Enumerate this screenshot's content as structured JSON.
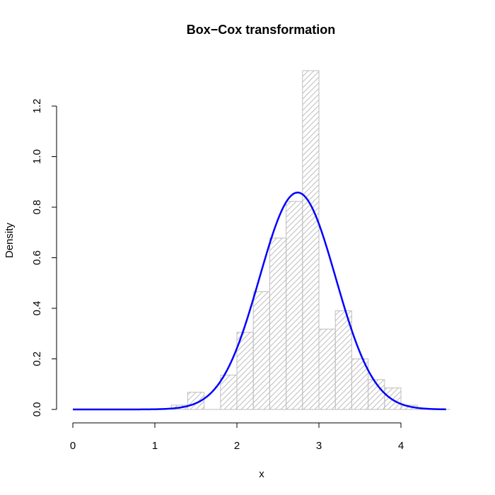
{
  "chart_data": {
    "type": "histogram",
    "title": "Box−Cox transformation",
    "xlabel": "x",
    "ylabel": "Density",
    "xlim": [
      0,
      4.55
    ],
    "ylim": [
      0,
      1.34
    ],
    "xticks": [
      0,
      1,
      2,
      3,
      4
    ],
    "xtick_labels": [
      "0",
      "1",
      "2",
      "3",
      "4"
    ],
    "yticks": [
      0.0,
      0.2,
      0.4,
      0.6,
      0.8,
      1.0,
      1.2
    ],
    "ytick_labels": [
      "0.0",
      "0.2",
      "0.4",
      "0.6",
      "0.8",
      "1.0",
      "1.2"
    ],
    "grid": false,
    "histogram": {
      "bins": [
        {
          "x0": 1.2,
          "x1": 1.4,
          "density": 0.017
        },
        {
          "x0": 1.4,
          "x1": 1.6,
          "density": 0.068
        },
        {
          "x0": 1.6,
          "x1": 1.8,
          "density": 0.0
        },
        {
          "x0": 1.8,
          "x1": 2.0,
          "density": 0.136
        },
        {
          "x0": 2.0,
          "x1": 2.2,
          "density": 0.305
        },
        {
          "x0": 2.2,
          "x1": 2.4,
          "density": 0.466
        },
        {
          "x0": 2.4,
          "x1": 2.6,
          "density": 0.678
        },
        {
          "x0": 2.6,
          "x1": 2.8,
          "density": 0.823
        },
        {
          "x0": 2.8,
          "x1": 3.0,
          "density": 1.34
        },
        {
          "x0": 3.0,
          "x1": 3.2,
          "density": 0.318
        },
        {
          "x0": 3.2,
          "x1": 3.4,
          "density": 0.39
        },
        {
          "x0": 3.4,
          "x1": 3.6,
          "density": 0.2
        },
        {
          "x0": 3.6,
          "x1": 3.8,
          "density": 0.118
        },
        {
          "x0": 3.8,
          "x1": 4.0,
          "density": 0.085
        },
        {
          "x0": 4.0,
          "x1": 4.2,
          "density": 0.017
        }
      ],
      "fill": "hatched",
      "color": "#bebebe"
    },
    "density_curve": {
      "type": "normal",
      "mean": 2.74,
      "sd": 0.465,
      "x_range": [
        0,
        4.55
      ],
      "color": "#0000ff"
    }
  }
}
